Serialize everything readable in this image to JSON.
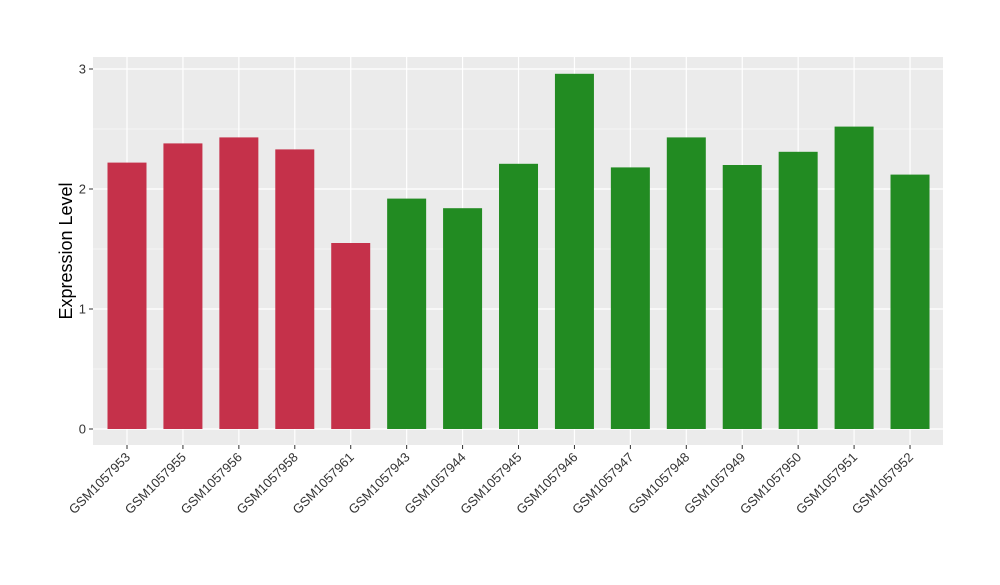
{
  "chart_data": {
    "type": "bar",
    "ylabel": "Expression Level",
    "xlabel": "",
    "title": "",
    "ylim": [
      0,
      3.1
    ],
    "yticks": [
      0,
      1,
      2,
      3
    ],
    "grid": true,
    "legend": "none",
    "categories": [
      "GSM1057953",
      "GSM1057955",
      "GSM1057956",
      "GSM1057958",
      "GSM1057961",
      "GSM1057943",
      "GSM1057944",
      "GSM1057945",
      "GSM1057946",
      "GSM1057947",
      "GSM1057948",
      "GSM1057949",
      "GSM1057950",
      "GSM1057951",
      "GSM1057952"
    ],
    "values": [
      2.22,
      2.38,
      2.43,
      2.33,
      1.55,
      1.92,
      1.84,
      2.21,
      2.96,
      2.18,
      2.43,
      2.2,
      2.31,
      2.52,
      2.12
    ],
    "bar_colors": [
      "#C5314A",
      "#C5314A",
      "#C5314A",
      "#C5314A",
      "#C5314A",
      "#228B22",
      "#228B22",
      "#228B22",
      "#228B22",
      "#228B22",
      "#228B22",
      "#228B22",
      "#228B22",
      "#228B22",
      "#228B22"
    ],
    "panel_background": "#EBEBEB",
    "grid_color": "#FFFFFF"
  }
}
